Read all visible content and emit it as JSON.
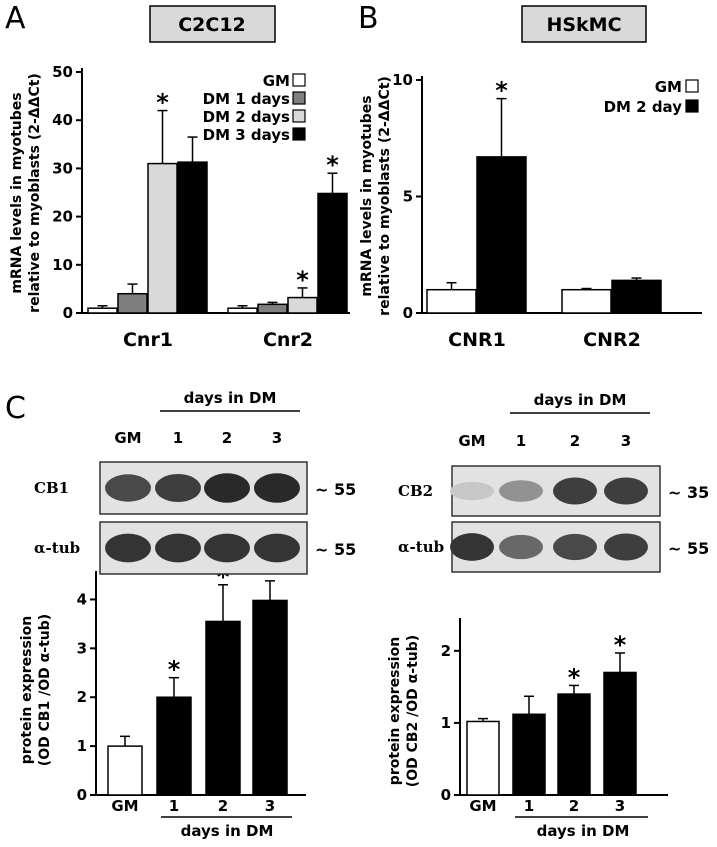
{
  "panels": {
    "A": {
      "letter": "A",
      "title": "C2C12"
    },
    "B": {
      "letter": "B",
      "title": "HSkMC"
    },
    "C": {
      "letter": "C"
    }
  },
  "chart_data": [
    {
      "id": "chartA",
      "type": "bar",
      "categories": [
        "Cnr1",
        "Cnr2"
      ],
      "series": [
        {
          "name": "GM",
          "values": [
            1,
            1
          ],
          "errors": [
            0.5,
            0.5
          ],
          "color": "#ffffff"
        },
        {
          "name": "DM 1 days",
          "values": [
            4,
            1.8
          ],
          "errors": [
            2,
            0.4
          ],
          "color": "#7f7f7f"
        },
        {
          "name": "DM 2 days",
          "values": [
            31,
            3.2
          ],
          "errors": [
            11,
            2
          ],
          "color": "#d9d9d9"
        },
        {
          "name": "DM 3 days",
          "values": [
            31.3,
            24.8
          ],
          "errors": [
            5.2,
            4.2
          ],
          "color": "#000000"
        }
      ],
      "significant": [
        [
          false,
          false,
          true,
          false
        ],
        [
          false,
          false,
          true,
          true
        ]
      ],
      "ylim": [
        0,
        50
      ],
      "yticks": [
        0,
        10,
        20,
        30,
        40,
        50
      ],
      "ylabel": "mRNA levels in myotubes relative to myoblasts (2-ΔΔCt)",
      "legend_position": "top-right"
    },
    {
      "id": "chartB",
      "type": "bar",
      "categories": [
        "CNR1",
        "CNR2"
      ],
      "series": [
        {
          "name": "GM",
          "values": [
            1.0,
            1.0
          ],
          "errors": [
            0.3,
            0.05
          ],
          "color": "#ffffff"
        },
        {
          "name": "DM 2 day",
          "values": [
            6.7,
            1.4
          ],
          "errors": [
            2.5,
            0.1
          ],
          "color": "#000000"
        }
      ],
      "significant": [
        [
          false,
          true
        ],
        [
          false,
          false
        ]
      ],
      "ylim": [
        0,
        10
      ],
      "yticks": [
        0,
        5,
        10
      ],
      "ylabel": "mRNA levels in myotubes relative to myoblasts (2-ΔΔCt)",
      "legend_position": "top-right"
    },
    {
      "id": "chartC1",
      "type": "bar",
      "categories": [
        "GM",
        "1",
        "2",
        "3"
      ],
      "values": [
        1.0,
        2.0,
        3.55,
        3.98
      ],
      "errors": [
        0.2,
        0.4,
        0.75,
        0.4
      ],
      "colors": [
        "#ffffff",
        "#000000",
        "#000000",
        "#000000"
      ],
      "significant": [
        false,
        true,
        true,
        true
      ],
      "ylim": [
        0,
        4.5
      ],
      "yticks": [
        0,
        1,
        2,
        3,
        4
      ],
      "ylabel": "protein expression (OD CB1 /OD α-tub)",
      "xlabel": "days in DM"
    },
    {
      "id": "chartC2",
      "type": "bar",
      "categories": [
        "GM",
        "1",
        "2",
        "3"
      ],
      "values": [
        1.02,
        1.12,
        1.4,
        1.7
      ],
      "errors": [
        0.04,
        0.25,
        0.12,
        0.27
      ],
      "colors": [
        "#ffffff",
        "#000000",
        "#000000",
        "#000000"
      ],
      "significant": [
        false,
        false,
        true,
        true
      ],
      "ylim": [
        0,
        2.4
      ],
      "yticks": [
        0,
        1,
        2
      ],
      "ylabel": "protein expression (OD CB2 /OD α-tub)",
      "xlabel": "days in DM"
    }
  ],
  "blots": {
    "left": {
      "header": "days in DM",
      "lanes": [
        "GM",
        "1",
        "2",
        "3"
      ],
      "rows": [
        {
          "label": "CB1",
          "mw": "~ 55",
          "intensities": [
            0.75,
            0.8,
            0.9,
            0.9
          ]
        },
        {
          "label": "α-tub",
          "mw": "~ 55",
          "intensities": [
            0.85,
            0.85,
            0.85,
            0.85
          ]
        }
      ]
    },
    "right": {
      "header": "days in DM",
      "lanes": [
        "GM",
        "1",
        "2",
        "3"
      ],
      "rows": [
        {
          "label": "CB2",
          "mw": "~ 35",
          "intensities": [
            0.15,
            0.4,
            0.8,
            0.8
          ]
        },
        {
          "label": "α-tub",
          "mw": "~ 55",
          "intensities": [
            0.85,
            0.6,
            0.75,
            0.8
          ]
        }
      ]
    }
  },
  "significance_marker": "*"
}
